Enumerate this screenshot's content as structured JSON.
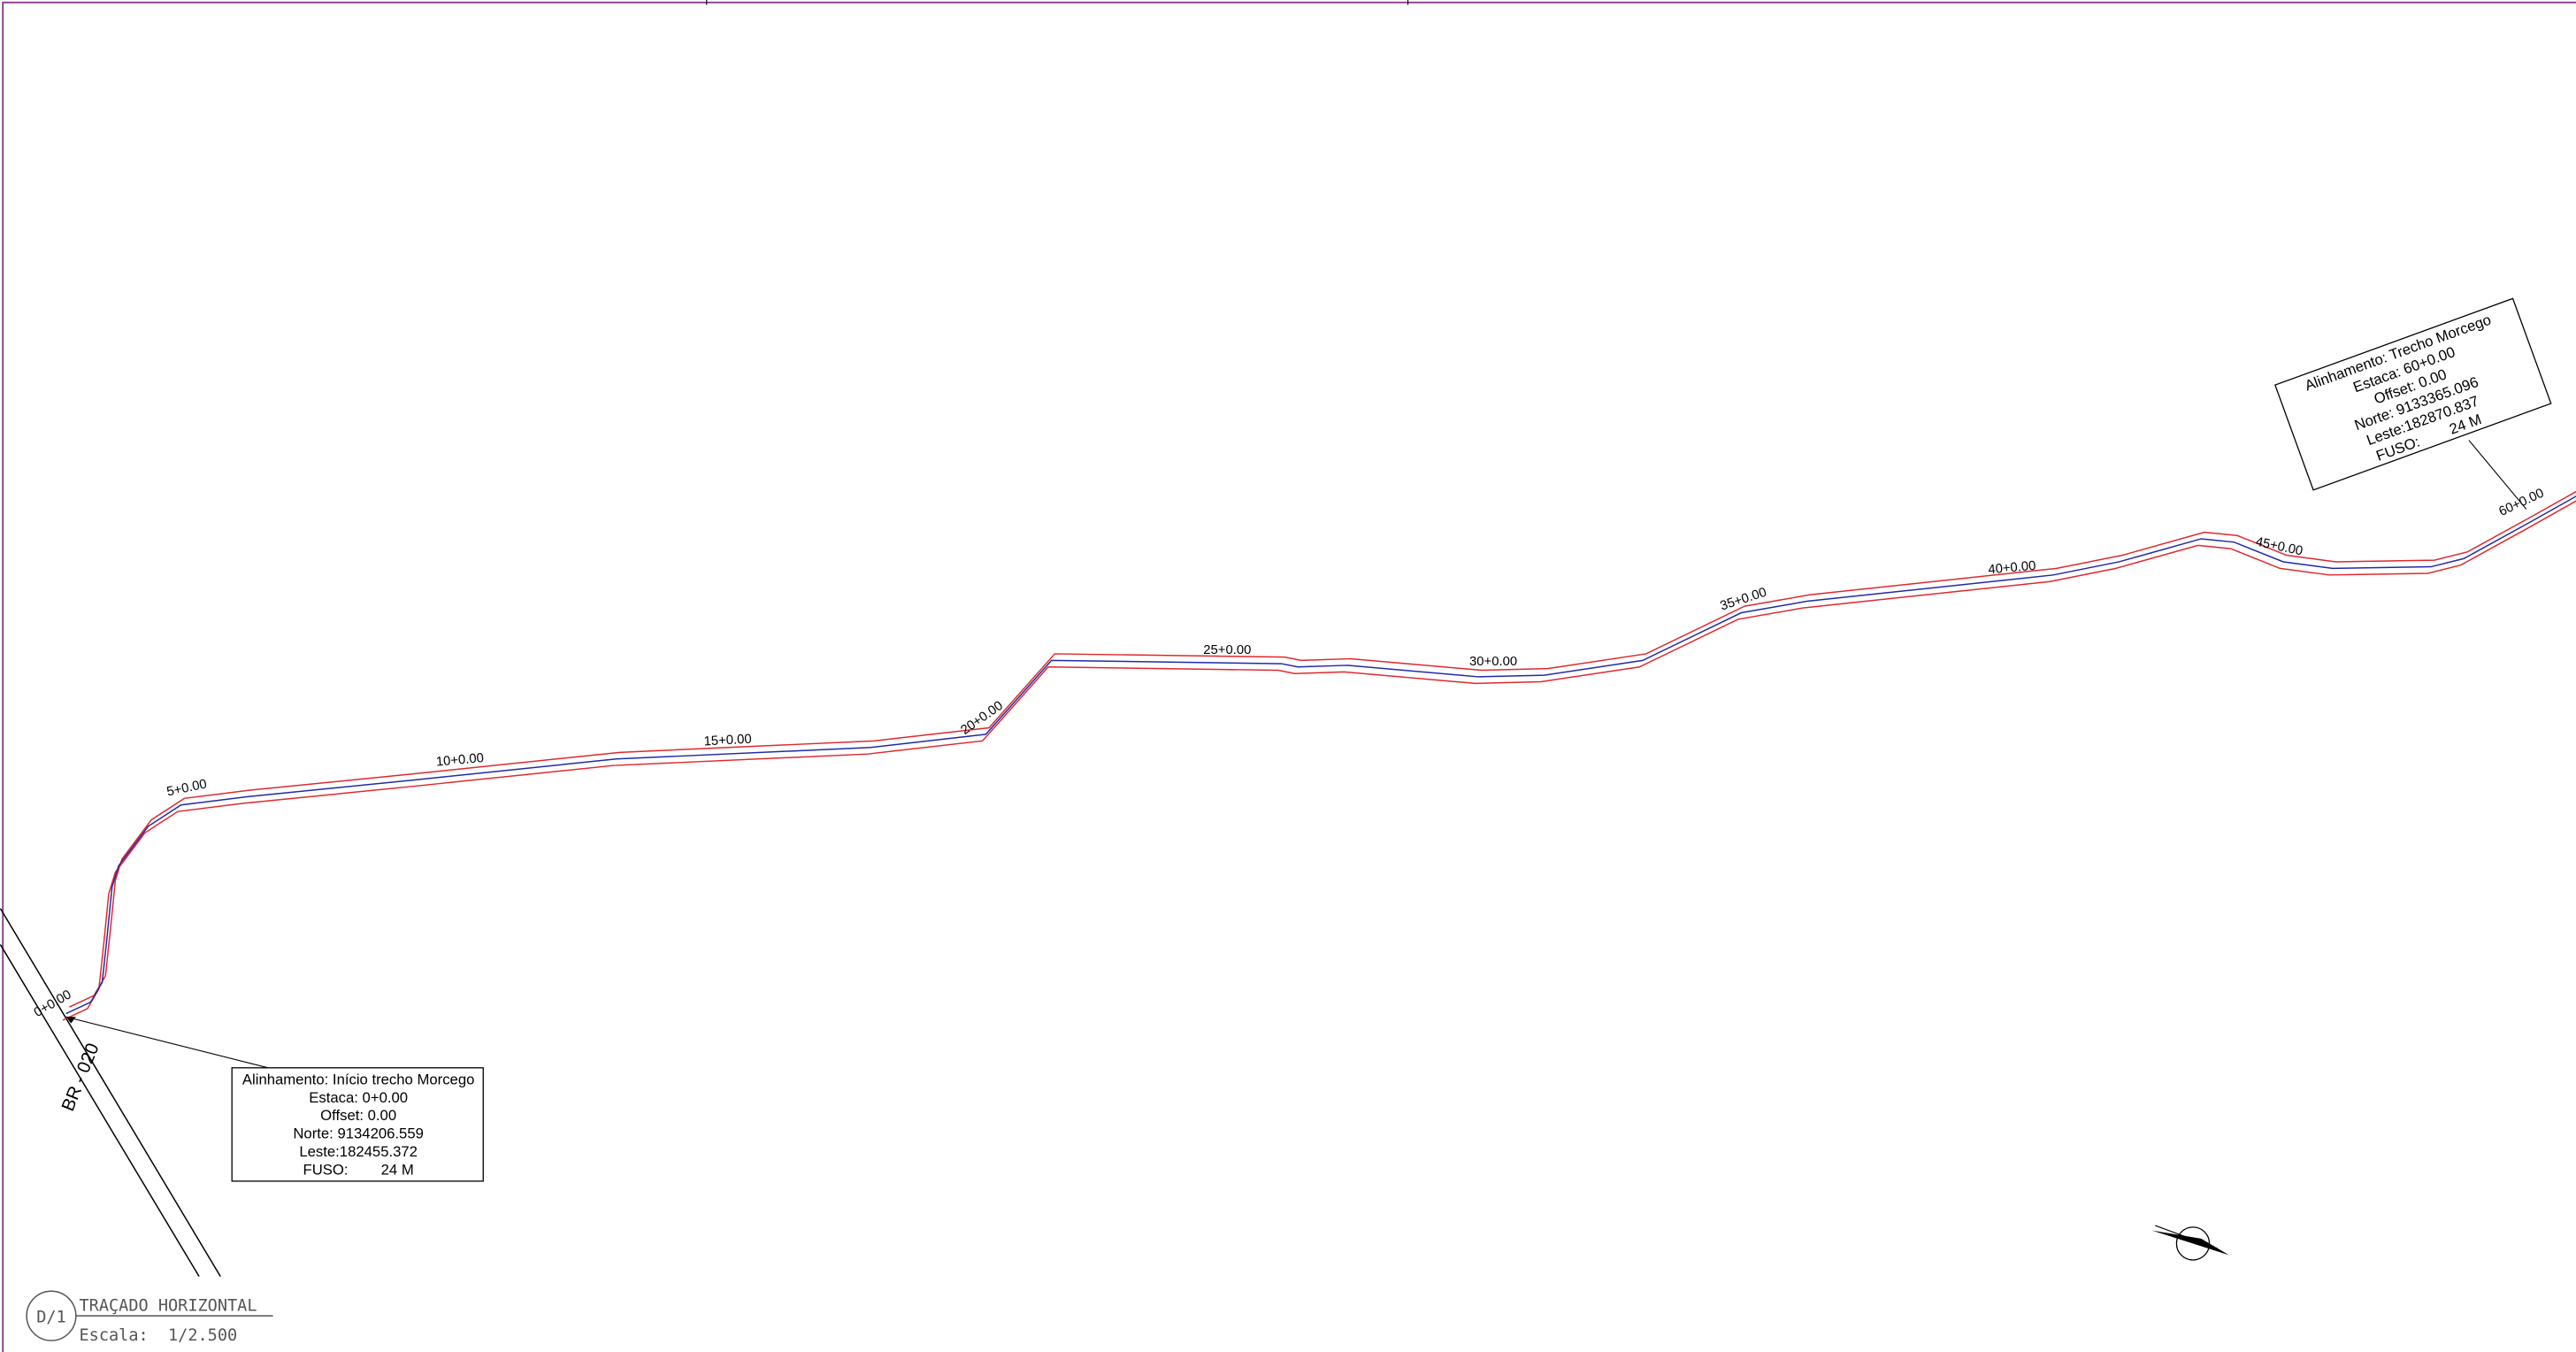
{
  "stations": [
    "0+0.00",
    "5+0.00",
    "10+0.00",
    "15+0.00",
    "20+0.00",
    "25+0.00",
    "30+0.00",
    "35+0.00",
    "40+0.00",
    "45+0.00",
    "60+0.00"
  ],
  "callouts": [
    {
      "lines": [
        "Alinhamento: Início trecho Morcego",
        "Estaca: 0+0.00",
        "Offset: 0.00",
        "Norte: 9134206.559",
        "Leste:182455.372",
        "FUSO:        24 M"
      ]
    },
    {
      "lines": [
        "Alinhamento: Trecho Morcego",
        "Estaca: 60+0.00",
        "Offset: 0.00",
        "Norte: 9133365.096",
        "Leste:182870.837",
        "FUSO:        24 M"
      ]
    }
  ],
  "road_label": "BR - 020",
  "title_block": {
    "sheet": "D/1",
    "title": "TRAÇADO HORIZONTAL",
    "scale": "Escala:  1/2.500"
  }
}
